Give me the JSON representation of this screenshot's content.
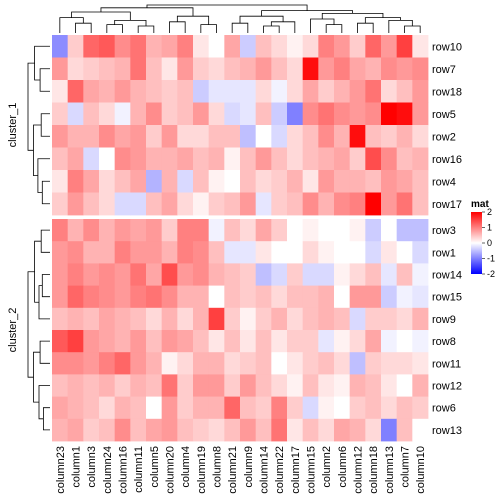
{
  "chart_data": {
    "type": "heatmap",
    "columns": [
      "column23",
      "column1",
      "column3",
      "column24",
      "column16",
      "column11",
      "column5",
      "column20",
      "column4",
      "column19",
      "column8",
      "column21",
      "column9",
      "column14",
      "column22",
      "column17",
      "column15",
      "column2",
      "column6",
      "column12",
      "column18",
      "column13",
      "column7",
      "column10"
    ],
    "row_clusters": [
      {
        "name": "cluster_1",
        "rows": [
          "row10",
          "row7",
          "row18",
          "row5",
          "row2",
          "row16",
          "row4",
          "row17"
        ]
      },
      {
        "name": "cluster_2",
        "rows": [
          "row3",
          "row1",
          "row14",
          "row15",
          "row9",
          "row8",
          "row11",
          "row12",
          "row6",
          "row13"
        ]
      }
    ],
    "values": [
      [
        -0.9,
        0.4,
        1.2,
        1.3,
        0.9,
        1.1,
        0.6,
        0.7,
        1.0,
        0.2,
        0.0,
        0.7,
        -0.4,
        0.5,
        0.3,
        0.1,
        0.3,
        1.0,
        0.8,
        0.4,
        1.2,
        0.8,
        1.5,
        0.2
      ],
      [
        0.8,
        0.3,
        0.4,
        0.5,
        0.6,
        1.1,
        0.5,
        0.2,
        0.8,
        0.4,
        0.3,
        0.5,
        0.6,
        0.8,
        0.5,
        0.3,
        1.9,
        0.8,
        1.0,
        0.7,
        0.6,
        0.9,
        0.8,
        0.9
      ],
      [
        0.2,
        1.2,
        0.7,
        0.6,
        0.8,
        0.6,
        0.5,
        0.4,
        0.5,
        -0.4,
        -0.2,
        -0.2,
        -0.2,
        0.3,
        -0.1,
        0.3,
        0.7,
        0.4,
        0.6,
        0.8,
        1.1,
        0.3,
        0.5,
        0.8
      ],
      [
        0.4,
        -0.3,
        0.5,
        0.3,
        -0.1,
        0.6,
        0.9,
        0.4,
        0.5,
        0.8,
        0.3,
        -0.3,
        -0.2,
        0.5,
        -0.4,
        -1.0,
        0.9,
        1.1,
        0.9,
        0.8,
        0.9,
        2.0,
        1.9,
        0.8
      ],
      [
        0.8,
        0.6,
        0.6,
        0.9,
        0.7,
        0.8,
        0.4,
        0.8,
        0.3,
        0.3,
        0.5,
        0.5,
        -0.5,
        0.0,
        -0.3,
        0.3,
        0.5,
        0.9,
        0.6,
        1.9,
        0.5,
        0.4,
        0.6,
        0.3
      ],
      [
        0.5,
        0.7,
        -0.3,
        0.0,
        0.9,
        0.8,
        0.6,
        0.6,
        0.7,
        0.5,
        0.6,
        0.1,
        0.5,
        0.8,
        0.5,
        0.3,
        0.5,
        0.6,
        0.7,
        0.4,
        1.4,
        0.9,
        0.5,
        0.6
      ],
      [
        0.2,
        1.0,
        0.7,
        0.3,
        0.5,
        0.7,
        -0.6,
        0.6,
        -0.3,
        0.5,
        0.1,
        0.0,
        0.5,
        0.3,
        0.4,
        0.6,
        0.2,
        0.8,
        0.6,
        0.6,
        0.5,
        0.8,
        0.7,
        0.5
      ],
      [
        0.4,
        0.8,
        0.5,
        0.3,
        -0.3,
        -0.3,
        0.5,
        0.7,
        0.3,
        0.1,
        0.4,
        0.5,
        0.8,
        -0.2,
        0.4,
        0.5,
        0.9,
        0.6,
        0.9,
        1.0,
        2.0,
        0.8,
        1.1,
        0.5
      ]
    ],
    "values_cluster_2": [
      [
        1.0,
        0.6,
        0.9,
        0.6,
        0.8,
        0.7,
        0.8,
        0.4,
        1.0,
        1.0,
        -0.1,
        0.5,
        0.3,
        0.7,
        0.4,
        0.0,
        0.1,
        0.0,
        0.0,
        0.1,
        -0.4,
        0.0,
        -0.5,
        -0.5
      ],
      [
        0.8,
        0.9,
        0.6,
        0.6,
        1.0,
        0.8,
        0.8,
        0.6,
        1.0,
        0.9,
        0.5,
        -0.2,
        -0.2,
        0.2,
        0.0,
        0.0,
        0.3,
        0.1,
        0.0,
        0.0,
        -0.3,
        0.2,
        0.0,
        -0.3
      ],
      [
        0.8,
        1.0,
        0.8,
        0.9,
        0.8,
        1.1,
        0.7,
        1.4,
        0.8,
        0.9,
        0.6,
        0.5,
        0.4,
        -0.5,
        -0.3,
        0.4,
        -0.3,
        -0.3,
        0.1,
        0.3,
        0.5,
        -0.2,
        0.5,
        -0.1
      ],
      [
        0.8,
        1.2,
        1.0,
        0.9,
        0.8,
        1.0,
        1.1,
        0.9,
        0.6,
        0.6,
        0.0,
        0.5,
        0.4,
        0.5,
        0.3,
        0.5,
        0.5,
        0.6,
        0.0,
        0.8,
        0.8,
        -0.4,
        -0.1,
        -0.2
      ],
      [
        0.5,
        0.6,
        0.5,
        0.7,
        0.6,
        0.5,
        0.3,
        0.6,
        0.3,
        0.6,
        1.5,
        0.4,
        0.1,
        0.4,
        0.6,
        0.3,
        0.5,
        0.6,
        0.5,
        -0.3,
        0.4,
        0.4,
        0.3,
        0.6
      ],
      [
        1.3,
        1.5,
        0.8,
        0.7,
        0.6,
        0.8,
        0.5,
        0.8,
        0.7,
        0.5,
        0.2,
        0.5,
        0.2,
        0.5,
        0.2,
        0.4,
        0.4,
        -0.2,
        0.1,
        0.3,
        0.7,
        -0.1,
        0.0,
        -0.1
      ],
      [
        0.9,
        0.9,
        0.8,
        1.0,
        1.2,
        0.8,
        0.6,
        0.1,
        0.3,
        0.6,
        0.6,
        0.3,
        0.4,
        0.5,
        0.0,
        0.2,
        0.4,
        0.5,
        0.3,
        -0.5,
        0.4,
        0.3,
        0.3,
        0.2
      ],
      [
        0.5,
        0.6,
        0.5,
        0.6,
        0.4,
        0.6,
        0.5,
        1.1,
        0.4,
        0.8,
        0.8,
        0.4,
        0.8,
        0.5,
        0.3,
        0.1,
        0.5,
        0.2,
        0.1,
        0.6,
        0.5,
        0.2,
        0.0,
        0.6
      ],
      [
        0.7,
        0.6,
        0.5,
        0.3,
        0.6,
        0.5,
        0.0,
        0.8,
        0.4,
        0.6,
        0.6,
        1.2,
        0.5,
        0.4,
        1.0,
        0.4,
        -0.3,
        0.1,
        0.0,
        0.4,
        0.5,
        0.3,
        0.5,
        0.4
      ],
      [
        0.6,
        0.7,
        0.4,
        0.5,
        0.9,
        0.5,
        0.7,
        0.8,
        0.5,
        0.4,
        0.3,
        0.5,
        0.8,
        0.5,
        1.1,
        0.2,
        0.5,
        0.3,
        0.7,
        0.6,
        0.3,
        -1.0,
        0.5,
        0.0
      ]
    ],
    "legend": {
      "title": "mat",
      "ticks": [
        "2",
        "1",
        "0",
        "-1",
        "-2"
      ],
      "tick_values": [
        2,
        1,
        0,
        -1,
        -2
      ],
      "placement": "right",
      "colors": {
        "high": "#ff0000",
        "mid": "#ffffff",
        "low": "#0000ff"
      }
    },
    "dendrograms": [
      "column dendrogram on top",
      "row dendrogram on left per cluster"
    ],
    "colors": {
      "high": "#ff0000",
      "mid": "#ffffff",
      "low": "#0000ff",
      "divider": "#ffffff"
    }
  }
}
